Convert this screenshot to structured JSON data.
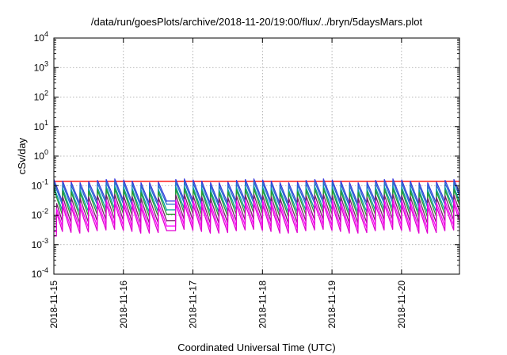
{
  "chart_data": {
    "type": "line",
    "title": "/data/run/goesPlots/archive/2018-11-20/19:00/flux/../bryn/5daysMars.plot",
    "xlabel": "Coordinated Universal Time (UTC)",
    "ylabel": "cSv/day",
    "x_scale": "time",
    "y_scale": "log",
    "xlim": [
      "2018-11-15T00:00",
      "2018-11-20T20:00"
    ],
    "ylim": [
      0.0001,
      10000
    ],
    "x_ticks": [
      "2018-11-15",
      "2018-11-16",
      "2018-11-17",
      "2018-11-18",
      "2018-11-19",
      "2018-11-20"
    ],
    "y_ticks": [
      {
        "base": "10",
        "exp": "-4",
        "value": 0.0001
      },
      {
        "base": "10",
        "exp": "-3",
        "value": 0.001
      },
      {
        "base": "10",
        "exp": "-2",
        "value": 0.01
      },
      {
        "base": "10",
        "exp": "-1",
        "value": 0.1
      },
      {
        "base": "10",
        "exp": "0",
        "value": 1
      },
      {
        "base": "10",
        "exp": "1",
        "value": 10
      },
      {
        "base": "10",
        "exp": "2",
        "value": 100
      },
      {
        "base": "10",
        "exp": "3",
        "value": 1000
      },
      {
        "base": "10",
        "exp": "4",
        "value": 10000
      }
    ],
    "grid": true,
    "cycle_hours": 3,
    "series": [
      {
        "color": "#ff0000",
        "peak": 0.14,
        "trough": 0.14,
        "trend": 0
      },
      {
        "color": "#3a3adf",
        "peak": 0.15,
        "trough": 0.028,
        "trend": 0.15
      },
      {
        "color": "#1e6fc8",
        "peak": 0.12,
        "trough": 0.022,
        "trend": 0.15
      },
      {
        "color": "#00a0a0",
        "peak": 0.085,
        "trough": 0.014,
        "trend": 0.15
      },
      {
        "color": "#2a9a2a",
        "peak": 0.07,
        "trough": 0.01,
        "trend": 0.15
      },
      {
        "color": "#7a1f6e",
        "peak": 0.045,
        "trough": 0.006,
        "trend": 0.15
      },
      {
        "color": "#ff00ff",
        "peak": 0.03,
        "trough": 0.004,
        "trend": 0.15
      },
      {
        "color": "#e000d0",
        "peak": 0.022,
        "trough": 0.0028,
        "trend": 0.15
      }
    ],
    "anomaly": {
      "start": "2018-11-16T15:00",
      "end": "2018-11-16T18:00",
      "value": 0.003
    }
  }
}
